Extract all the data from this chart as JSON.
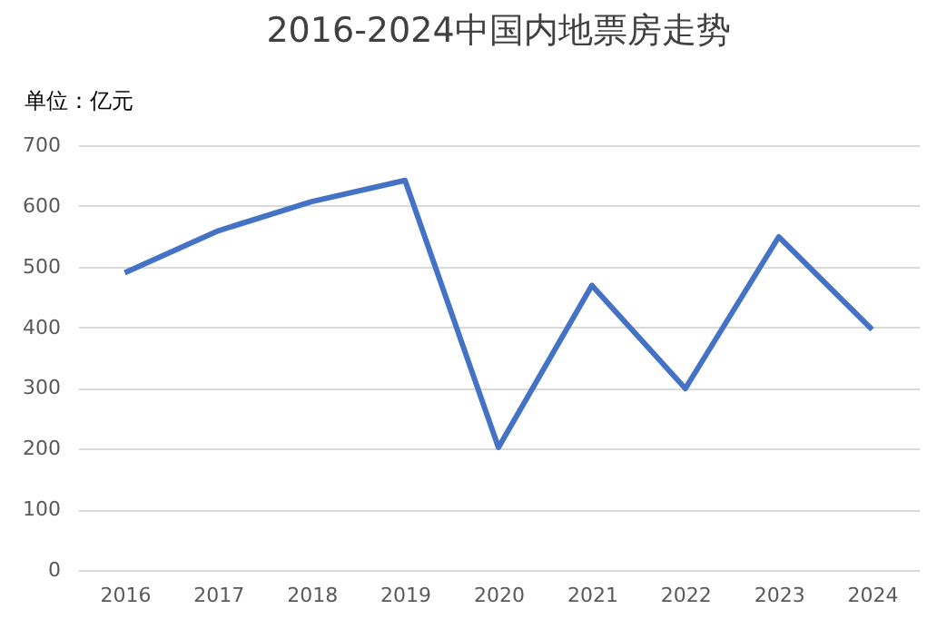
{
  "chart_data": {
    "type": "line",
    "title": "2016-2024中国内地票房走势",
    "ylabel": "单位：亿元",
    "categories": [
      "2016",
      "2017",
      "2018",
      "2019",
      "2020",
      "2021",
      "2022",
      "2023",
      "2024"
    ],
    "series": [
      {
        "color": "#4472c4",
        "values": [
          490,
          559,
          607,
          642,
          202,
          469,
          299,
          549,
          396
        ]
      }
    ],
    "ylim": [
      0,
      700
    ],
    "yticks": [
      0,
      100,
      200,
      300,
      400,
      500,
      600,
      700
    ],
    "grid": "y",
    "legend": false,
    "marker": "none",
    "line_style": "solid"
  }
}
